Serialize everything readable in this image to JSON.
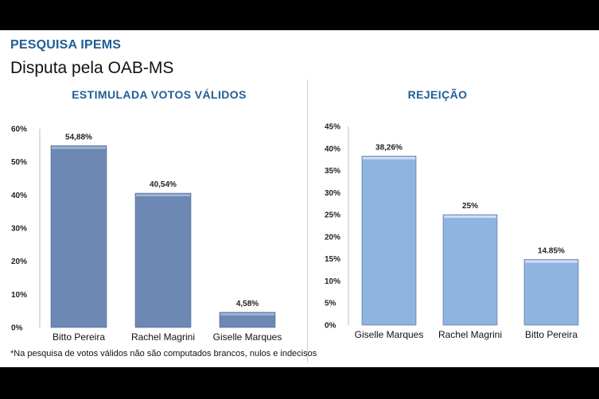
{
  "header": {
    "kicker": "PESQUISA IPEMS",
    "title": "Disputa pela OAB-MS"
  },
  "footnote": "*Na pesquisa de votos válidos não são computados brancos, nulos e indecisos",
  "colors": {
    "left_bar": "#6e88b4",
    "left_bar_highlight": "#9fb3d5",
    "right_bar": "#8fb4e0",
    "right_bar_highlight": "#cddff3",
    "title_blue": "#1f5d96"
  },
  "chart_data": [
    {
      "type": "bar",
      "title": "ESTIMULADA VOTOS VÁLIDOS",
      "categories": [
        "Bitto Pereira",
        "Rachel Magrini",
        "Giselle Marques"
      ],
      "values": [
        54.88,
        40.54,
        4.58
      ],
      "value_labels": [
        "54,88%",
        "40,54%",
        "4,58%"
      ],
      "ylim": [
        0,
        60
      ],
      "yticks": [
        0,
        10,
        20,
        30,
        40,
        50,
        60
      ],
      "ytick_labels": [
        "0%",
        "10%",
        "20%",
        "30%",
        "40%",
        "50%",
        "60%"
      ],
      "grid": false,
      "legend": "none"
    },
    {
      "type": "bar",
      "title": "REJEIÇÃO",
      "categories": [
        "Giselle Marques",
        "Rachel Magrini",
        "Bitto Pereira"
      ],
      "values": [
        38.26,
        25,
        14.85
      ],
      "value_labels": [
        "38,26%",
        "25%",
        "14.85%"
      ],
      "ylim": [
        0,
        45
      ],
      "yticks": [
        0,
        5,
        10,
        15,
        20,
        25,
        30,
        35,
        40,
        45
      ],
      "ytick_labels": [
        "0%",
        "5%",
        "10%",
        "15%",
        "20%",
        "25%",
        "30%",
        "35%",
        "40%",
        "45%"
      ],
      "grid": false,
      "legend": "none"
    }
  ]
}
